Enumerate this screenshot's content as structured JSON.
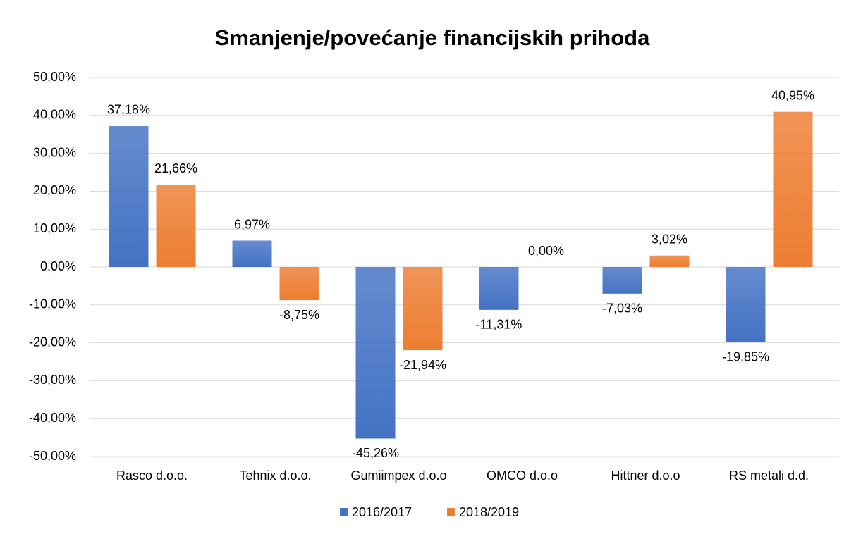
{
  "chart_data": {
    "type": "bar",
    "title": "Smanjenje/povećanje financijskih prihoda",
    "categories": [
      "Rasco d.o.o.",
      "Tehnix d.o.o.",
      "Gumiimpex d.o.o",
      "OMCO d.o.o",
      "Hittner d.o.o",
      "RS metali d.d."
    ],
    "series": [
      {
        "name": "2016/2017",
        "color": "#4472c4",
        "values": [
          37.18,
          6.97,
          -45.26,
          -11.31,
          -7.03,
          -19.85
        ],
        "value_labels": [
          "37,18%",
          "6,97%",
          "-45,26%",
          "-11,31%",
          "-7,03%",
          "-19,85%"
        ]
      },
      {
        "name": "2018/2019",
        "color": "#ed7d31",
        "values": [
          21.66,
          -8.75,
          -21.94,
          0,
          3.02,
          40.95
        ],
        "value_labels": [
          "21,66%",
          "-8,75%",
          "-21,94%",
          "0,00%",
          "3,02%",
          "40,95%"
        ]
      }
    ],
    "ylim": [
      -50,
      50
    ],
    "yticks": [
      {
        "value": -50,
        "label": "-50,00%"
      },
      {
        "value": -40,
        "label": "-40,00%"
      },
      {
        "value": -30,
        "label": "-30,00%"
      },
      {
        "value": -20,
        "label": "-20,00%"
      },
      {
        "value": -10,
        "label": "-10,00%"
      },
      {
        "value": 0,
        "label": "0,00%"
      },
      {
        "value": 10,
        "label": "10,00%"
      },
      {
        "value": 20,
        "label": "20,00%"
      },
      {
        "value": 30,
        "label": "30,00%"
      },
      {
        "value": 40,
        "label": "40,00%"
      },
      {
        "value": 50,
        "label": "50,00%"
      }
    ],
    "grid": true,
    "legend": "bottom"
  }
}
